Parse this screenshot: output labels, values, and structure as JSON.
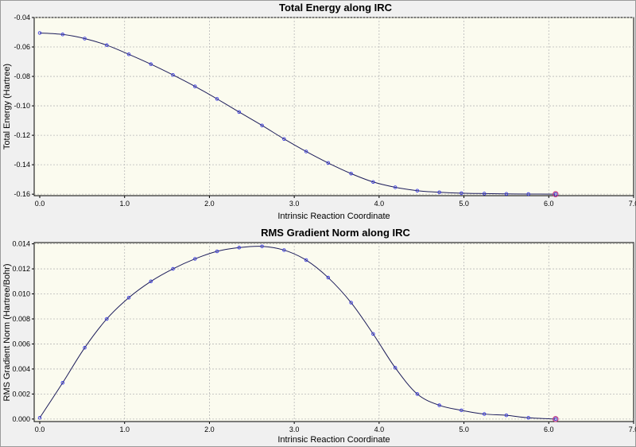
{
  "chart_data": [
    {
      "type": "line",
      "title": "Total Energy along IRC",
      "xlabel": "Intrinsic Reaction Coordinate",
      "ylabel": "Total Energy (Hartree)",
      "xlim": [
        0.0,
        7.0
      ],
      "ylim": [
        -0.161,
        -0.04
      ],
      "xticks": [
        "0.0",
        "1.0",
        "2.0",
        "3.0",
        "4.0",
        "5.0",
        "6.0",
        "7.0"
      ],
      "yticks": [
        "-0.04",
        "-0.06",
        "-0.08",
        "-0.10",
        "-0.12",
        "-0.14",
        "-0.16"
      ],
      "ytick_values": [
        -0.04,
        -0.06,
        -0.08,
        -0.1,
        -0.12,
        -0.14,
        -0.16
      ],
      "grid": true,
      "x": [
        0.0,
        0.27,
        0.53,
        0.79,
        1.05,
        1.31,
        1.57,
        1.83,
        2.09,
        2.35,
        2.62,
        2.88,
        3.14,
        3.4,
        3.67,
        3.93,
        4.19,
        4.45,
        4.71,
        4.97,
        5.24,
        5.5,
        5.76,
        6.08
      ],
      "y": [
        -0.0505,
        -0.0515,
        -0.0543,
        -0.0588,
        -0.065,
        -0.0717,
        -0.079,
        -0.0868,
        -0.0953,
        -0.1042,
        -0.1133,
        -0.1225,
        -0.131,
        -0.1388,
        -0.146,
        -0.1517,
        -0.1553,
        -0.1576,
        -0.1587,
        -0.1593,
        -0.1596,
        -0.1598,
        -0.1599,
        -0.16
      ],
      "highlight_last": true,
      "colors": {
        "line": "#1c1c5a",
        "marker": "#3a3ae0",
        "highlight": "#c0307a",
        "plot_bg": "#fbfbef"
      }
    },
    {
      "type": "line",
      "title": "RMS Gradient Norm along IRC",
      "xlabel": "Intrinsic Reaction Coordinate",
      "ylabel": "RMS Gradient Norm (Hartree/Bohr)",
      "xlim": [
        0.0,
        7.0
      ],
      "ylim": [
        -0.0002,
        0.0141
      ],
      "xticks": [
        "0.0",
        "1.0",
        "2.0",
        "3.0",
        "4.0",
        "5.0",
        "6.0",
        "7.0"
      ],
      "yticks": [
        "0.014",
        "0.012",
        "0.010",
        "0.008",
        "0.006",
        "0.004",
        "0.002",
        "0.000"
      ],
      "ytick_values": [
        0.014,
        0.012,
        0.01,
        0.008,
        0.006,
        0.004,
        0.002,
        0.0
      ],
      "grid": true,
      "x": [
        0.0,
        0.27,
        0.53,
        0.79,
        1.05,
        1.31,
        1.57,
        1.83,
        2.09,
        2.35,
        2.62,
        2.88,
        3.14,
        3.4,
        3.67,
        3.93,
        4.19,
        4.45,
        4.71,
        4.97,
        5.24,
        5.5,
        5.76,
        6.08
      ],
      "y": [
        0.0001,
        0.0029,
        0.0057,
        0.008,
        0.0097,
        0.011,
        0.012,
        0.0128,
        0.0134,
        0.0137,
        0.0138,
        0.0135,
        0.0127,
        0.0113,
        0.0093,
        0.0068,
        0.0041,
        0.002,
        0.0011,
        0.0007,
        0.0004,
        0.0003,
        0.0001,
        0.0
      ],
      "highlight_last": true,
      "colors": {
        "line": "#1c1c5a",
        "marker": "#3a3ae0",
        "highlight": "#c0307a",
        "plot_bg": "#fbfbef"
      }
    }
  ]
}
